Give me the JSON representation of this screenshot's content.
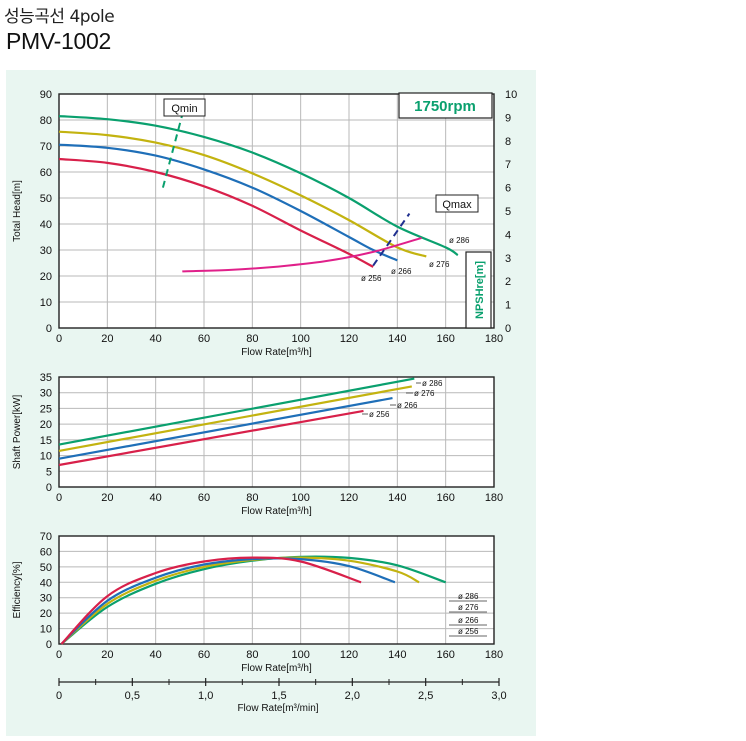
{
  "header": {
    "title_ko": "성능곡선 4pole",
    "model": "PMV-1002"
  },
  "colors": {
    "d286": "#0aa06e",
    "d276": "#c3b310",
    "d266": "#1f6fb8",
    "d256": "#d8204a",
    "npsh": "#e0208a",
    "qmax": "#1f2f8f",
    "qmin": "#0aa06e",
    "panel": "#e9f6f1"
  },
  "chart_data": [
    {
      "type": "line",
      "speed_label": "1750rpm",
      "xlabel": "Flow Rate[m³/h]",
      "ylabel": "Total Head[m]",
      "y2label": "NPSHre[m]",
      "xlim": [
        0,
        180
      ],
      "ylim": [
        0,
        90
      ],
      "y2lim": [
        0,
        10
      ],
      "xticks": [
        0,
        20,
        40,
        60,
        80,
        100,
        120,
        140,
        160,
        180
      ],
      "yticks": [
        0,
        10,
        20,
        30,
        40,
        50,
        60,
        70,
        80,
        90
      ],
      "y2ticks": [
        0,
        1,
        2,
        3,
        4,
        5,
        6,
        7,
        8,
        9,
        10
      ],
      "series": [
        {
          "name": "ø 286",
          "color_key": "d286",
          "x": [
            0,
            20,
            40,
            60,
            80,
            100,
            120,
            140,
            160,
            165
          ],
          "y": [
            81.5,
            80.3,
            77.8,
            73.5,
            67.5,
            59.5,
            50,
            39,
            31,
            28
          ]
        },
        {
          "name": "ø 276",
          "color_key": "d276",
          "x": [
            0,
            20,
            40,
            60,
            80,
            100,
            120,
            140,
            152
          ],
          "y": [
            75.5,
            74.2,
            71.3,
            66.5,
            59.5,
            51,
            41.5,
            31,
            27.5
          ]
        },
        {
          "name": "ø 266",
          "color_key": "d266",
          "x": [
            0,
            20,
            40,
            60,
            80,
            100,
            120,
            130,
            140
          ],
          "y": [
            70.5,
            69.3,
            66.3,
            61,
            54,
            45,
            35,
            30,
            26
          ]
        },
        {
          "name": "ø 256",
          "color_key": "d256",
          "x": [
            0,
            20,
            40,
            60,
            80,
            100,
            120,
            130
          ],
          "y": [
            65,
            63.5,
            60,
            54.5,
            47,
            37.5,
            28.5,
            23.5
          ]
        }
      ],
      "npsh": {
        "name": "NPSHre[m]",
        "x": [
          51,
          70,
          90,
          110,
          130,
          150
        ],
        "y": [
          2.42,
          2.48,
          2.62,
          2.85,
          3.25,
          3.85
        ]
      },
      "qmin": {
        "label": "Qmin",
        "x": [
          43,
          51
        ],
        "y": [
          54,
          82
        ]
      },
      "qmax": {
        "label": "Qmax",
        "x": [
          130,
          145
        ],
        "y": [
          24,
          44
        ]
      }
    },
    {
      "type": "line",
      "xlabel": "Flow Rate[m³/h]",
      "ylabel": "Shaft Power[kW]",
      "xlim": [
        0,
        180
      ],
      "ylim": [
        0,
        35
      ],
      "xticks": [
        0,
        20,
        40,
        60,
        80,
        100,
        120,
        140,
        160,
        180
      ],
      "yticks": [
        0,
        5,
        10,
        15,
        20,
        25,
        30,
        35
      ],
      "series": [
        {
          "name": "ø 286",
          "color_key": "d286",
          "x": [
            0,
            147
          ],
          "y": [
            13.5,
            34.5
          ]
        },
        {
          "name": "ø 276",
          "color_key": "d276",
          "x": [
            0,
            146
          ],
          "y": [
            11.5,
            32
          ]
        },
        {
          "name": "ø 266",
          "color_key": "d266",
          "x": [
            0,
            138
          ],
          "y": [
            9,
            28.3
          ]
        },
        {
          "name": "ø 256",
          "color_key": "d256",
          "x": [
            0,
            126
          ],
          "y": [
            7,
            24.2
          ]
        }
      ]
    },
    {
      "type": "line",
      "xlabel": "Flow Rate[m³/h]",
      "x2label": "Flow Rate[m³/min]",
      "ylabel": "Efficiency[%]",
      "xlim": [
        0,
        180
      ],
      "ylim": [
        0,
        70
      ],
      "x2lim": [
        0,
        3.0
      ],
      "xticks": [
        0,
        20,
        40,
        60,
        80,
        100,
        120,
        140,
        160,
        180
      ],
      "yticks": [
        0,
        10,
        20,
        30,
        40,
        50,
        60,
        70
      ],
      "x2ticks": [
        "0",
        "0,5",
        "1,0",
        "1,5",
        "2,0",
        "2,5",
        "3,0"
      ],
      "series": [
        {
          "name": "ø 286",
          "color_key": "d286",
          "x": [
            1,
            20,
            40,
            60,
            80,
            100,
            120,
            140,
            160
          ],
          "y": [
            0,
            24,
            39,
            48.5,
            54,
            56.5,
            55.8,
            51,
            40
          ]
        },
        {
          "name": "ø 276",
          "color_key": "d276",
          "x": [
            1,
            20,
            40,
            60,
            80,
            100,
            120,
            140,
            149
          ],
          "y": [
            0,
            26,
            41,
            50,
            54.5,
            56,
            54,
            47,
            40
          ]
        },
        {
          "name": "ø 266",
          "color_key": "d266",
          "x": [
            1,
            20,
            40,
            60,
            80,
            100,
            120,
            139
          ],
          "y": [
            0,
            28,
            43,
            51.5,
            55,
            55,
            50.5,
            40
          ]
        },
        {
          "name": "ø 256",
          "color_key": "d256",
          "x": [
            1,
            20,
            40,
            60,
            80,
            100,
            125
          ],
          "y": [
            0,
            31,
            46,
            53.5,
            56,
            53.5,
            40
          ]
        }
      ],
      "legend_order": [
        "ø 286",
        "ø 276",
        "ø 266",
        "ø 256"
      ]
    }
  ]
}
